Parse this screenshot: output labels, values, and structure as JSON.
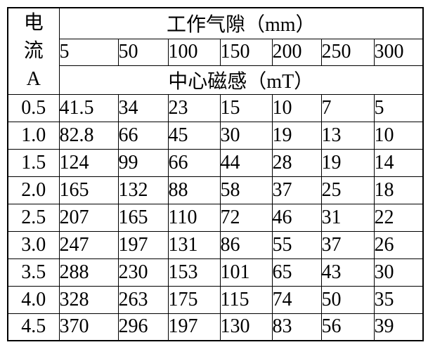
{
  "table": {
    "row_label_lines": [
      "电",
      "流",
      "A"
    ],
    "top_header": "工作气隙（mm）",
    "gap_values": [
      "5",
      "50",
      "100",
      "150",
      "200",
      "250",
      "300"
    ],
    "mid_header": "中心磁感（mT）",
    "rows": [
      {
        "current": "0.5",
        "values": [
          "41.5",
          "34",
          "23",
          "15",
          "10",
          "7",
          "5"
        ]
      },
      {
        "current": "1.0",
        "values": [
          "82.8",
          "66",
          "45",
          "30",
          "19",
          "13",
          "10"
        ]
      },
      {
        "current": "1.5",
        "values": [
          "124",
          "99",
          "66",
          "44",
          "28",
          "19",
          "14"
        ]
      },
      {
        "current": "2.0",
        "values": [
          "165",
          "132",
          "88",
          "58",
          "37",
          "25",
          "18"
        ]
      },
      {
        "current": "2.5",
        "values": [
          "207",
          "165",
          "110",
          "72",
          "46",
          "31",
          "22"
        ]
      },
      {
        "current": "3.0",
        "values": [
          "247",
          "197",
          "131",
          "86",
          "55",
          "37",
          "26"
        ]
      },
      {
        "current": "3.5",
        "values": [
          "288",
          "230",
          "153",
          "101",
          "65",
          "43",
          "30"
        ]
      },
      {
        "current": "4.0",
        "values": [
          "328",
          "263",
          "175",
          "115",
          "74",
          "50",
          "35"
        ]
      },
      {
        "current": "4.5",
        "values": [
          "370",
          "296",
          "197",
          "130",
          "83",
          "56",
          "39"
        ]
      }
    ],
    "colors": {
      "border": "#000000",
      "text": "#000000",
      "background": "#ffffff"
    }
  }
}
